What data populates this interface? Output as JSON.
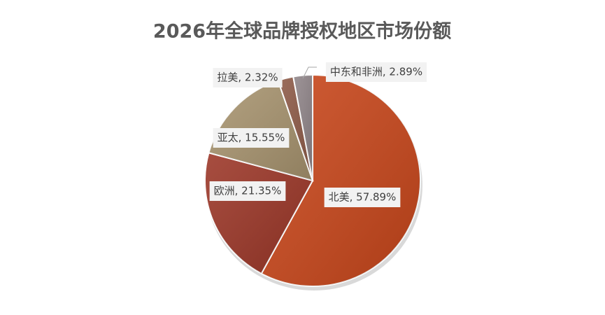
{
  "chart_data": {
    "type": "pie",
    "title": "2026年全球品牌授权地区市场份额",
    "categories": [
      "北美",
      "欧洲",
      "亚太",
      "拉美",
      "中东和非洲"
    ],
    "values": [
      57.89,
      21.35,
      15.55,
      2.32,
      2.89
    ],
    "value_labels": [
      "北美, 57.89%",
      "欧洲, 21.35%",
      "亚太, 15.55%",
      "拉美, 2.32%",
      "中东和非洲, 2.89%"
    ],
    "colors": [
      "#c9461a",
      "#9b3526",
      "#a8946f",
      "#8e5a47",
      "#908589"
    ]
  }
}
